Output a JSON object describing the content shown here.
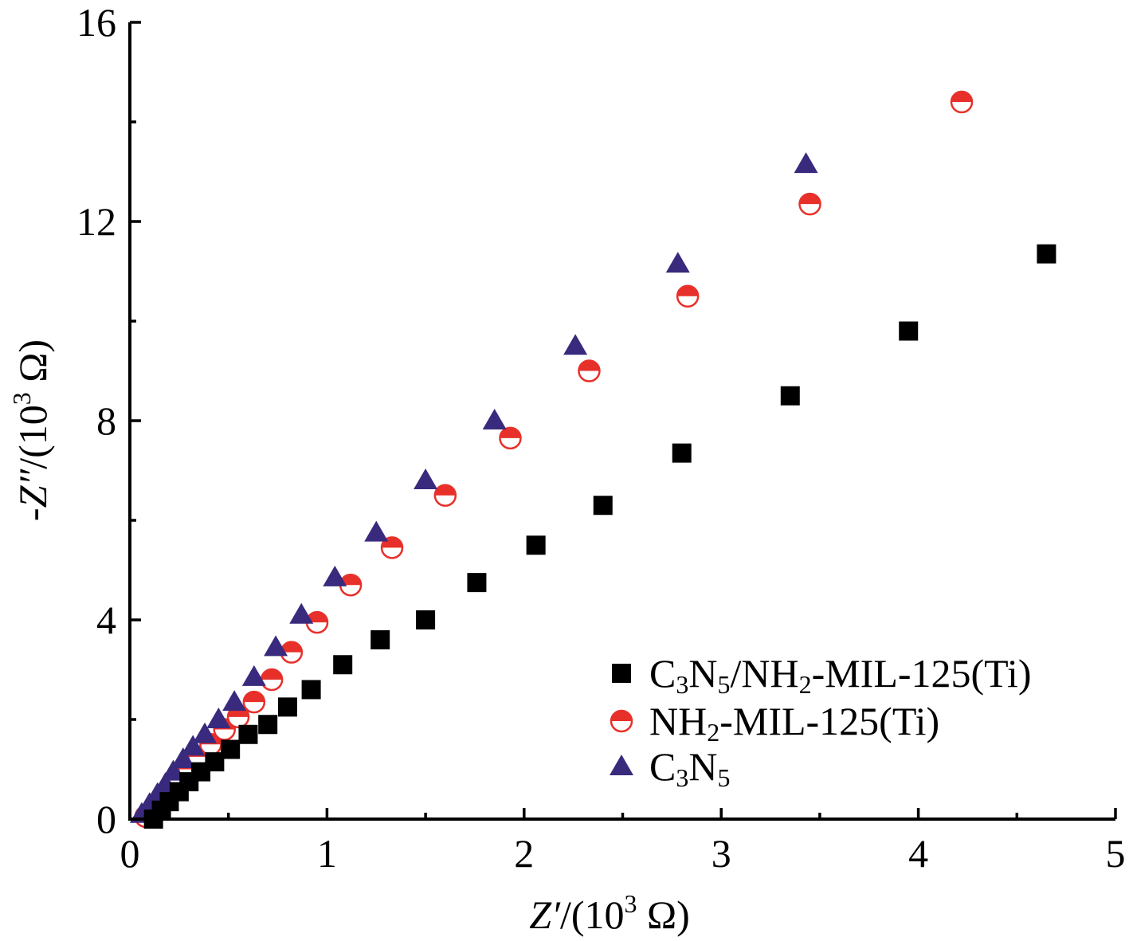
{
  "chart_data": {
    "type": "scatter",
    "xlabel": {
      "var": "Z′",
      "unit": "/(10",
      "sup": "3",
      "end": " Ω)"
    },
    "ylabel": {
      "var": "-Z″",
      "unit": "/(10",
      "sup": "3",
      "end": " Ω)"
    },
    "xlim": [
      0,
      5
    ],
    "ylim": [
      0,
      16
    ],
    "xticks": [
      "0",
      "1",
      "2",
      "3",
      "4",
      "5"
    ],
    "yticks": [
      "0",
      "4",
      "8",
      "12",
      "16"
    ],
    "grid": false,
    "legend_position": "bottom-right",
    "series": [
      {
        "marker": "square",
        "color": "#000000",
        "legend": {
          "parts": [
            {
              "t": "C"
            },
            {
              "t": "3",
              "sub": true
            },
            {
              "t": "N"
            },
            {
              "t": "5",
              "sub": true
            },
            {
              "t": "/NH"
            },
            {
              "t": "2",
              "sub": true
            },
            {
              "t": "-MIL-125(Ti)"
            }
          ]
        },
        "x": [
          0.12,
          0.16,
          0.2,
          0.25,
          0.3,
          0.36,
          0.43,
          0.51,
          0.6,
          0.7,
          0.8,
          0.92,
          1.08,
          1.27,
          1.5,
          1.76,
          2.06,
          2.4,
          2.8,
          3.35,
          3.95,
          4.65
        ],
        "y": [
          0.0,
          0.18,
          0.35,
          0.55,
          0.75,
          0.95,
          1.15,
          1.4,
          1.7,
          1.9,
          2.25,
          2.6,
          3.1,
          3.6,
          4.0,
          4.75,
          5.5,
          6.3,
          7.35,
          8.5,
          9.8,
          11.35
        ]
      },
      {
        "marker": "half-circle",
        "color": "#e8302a",
        "legend": {
          "parts": [
            {
              "t": "NH"
            },
            {
              "t": "2",
              "sub": true
            },
            {
              "t": "-MIL-125(Ti)"
            }
          ]
        },
        "x": [
          0.08,
          0.12,
          0.16,
          0.2,
          0.25,
          0.3,
          0.35,
          0.41,
          0.48,
          0.55,
          0.63,
          0.72,
          0.82,
          0.95,
          1.12,
          1.33,
          1.6,
          1.93,
          2.33,
          2.83,
          3.45,
          4.22
        ],
        "y": [
          0.05,
          0.2,
          0.4,
          0.6,
          0.8,
          1.0,
          1.25,
          1.5,
          1.8,
          2.05,
          2.35,
          2.8,
          3.35,
          3.95,
          4.7,
          5.45,
          6.5,
          7.65,
          9.0,
          10.5,
          12.35,
          14.4
        ]
      },
      {
        "marker": "triangle",
        "color": "#3a2a7e",
        "legend": {
          "parts": [
            {
              "t": "C"
            },
            {
              "t": "3",
              "sub": true
            },
            {
              "t": "N"
            },
            {
              "t": "5",
              "sub": true
            }
          ]
        },
        "x": [
          0.06,
          0.1,
          0.14,
          0.18,
          0.22,
          0.27,
          0.32,
          0.38,
          0.45,
          0.53,
          0.63,
          0.74,
          0.87,
          1.04,
          1.25,
          1.5,
          1.85,
          2.26,
          2.78,
          3.43
        ],
        "y": [
          0.1,
          0.3,
          0.5,
          0.7,
          0.95,
          1.2,
          1.45,
          1.7,
          2.0,
          2.35,
          2.85,
          3.45,
          4.1,
          4.85,
          5.75,
          6.8,
          8.0,
          9.5,
          11.15,
          13.15
        ]
      }
    ]
  }
}
